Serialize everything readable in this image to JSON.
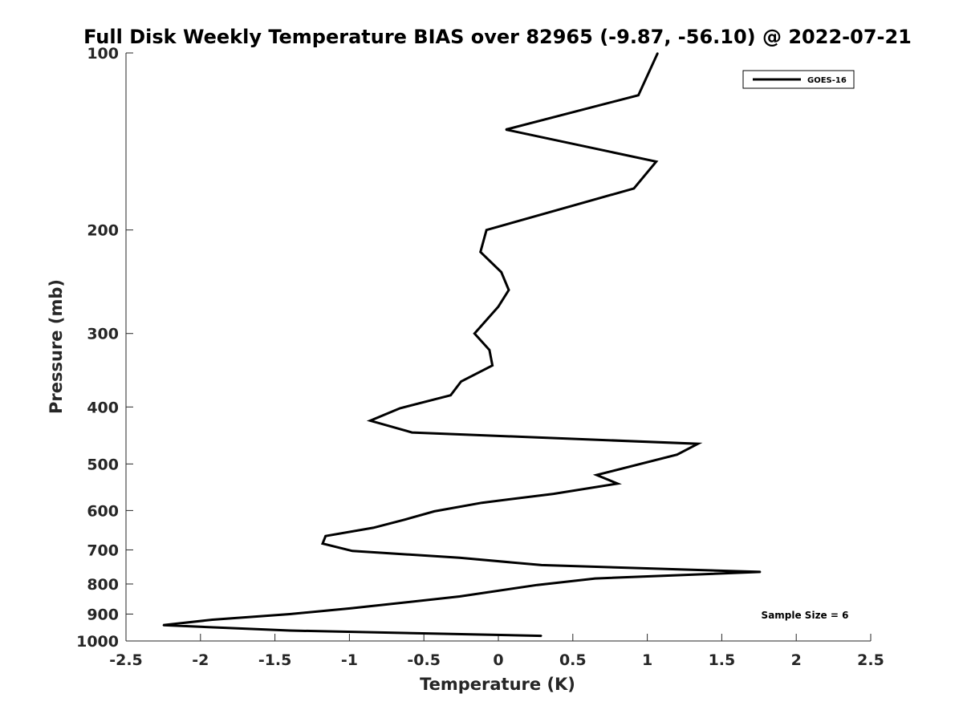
{
  "chart_data": {
    "type": "line",
    "title": "Full Disk Weekly Temperature BIAS over 82965 (-9.87, -56.10) @ 2022-07-21",
    "xlabel": "Temperature (K)",
    "ylabel": "Pressure (mb)",
    "xlim": [
      -2.5,
      2.5
    ],
    "ylim": [
      100,
      1000
    ],
    "y_scale": "log",
    "y_reversed": true,
    "xticks": [
      -2.5,
      -2,
      -1.5,
      -1,
      -0.5,
      0,
      0.5,
      1,
      1.5,
      2,
      2.5
    ],
    "xtick_labels": [
      "-2.5",
      "-2",
      "-1.5",
      "-1",
      "-0.5",
      "0",
      "0.5",
      "1",
      "1.5",
      "2",
      "2.5"
    ],
    "yticks": [
      100,
      200,
      300,
      400,
      500,
      600,
      700,
      800,
      900,
      1000
    ],
    "ytick_labels": [
      "100",
      "200",
      "300",
      "400",
      "500",
      "600",
      "700",
      "800",
      "900",
      "1000"
    ],
    "grid": false,
    "legend_position": "top-right",
    "series": [
      {
        "name": "GOES-16",
        "color": "#000000",
        "points": [
          {
            "x": 1.07,
            "y": 100
          },
          {
            "x": 0.94,
            "y": 118
          },
          {
            "x": 0.05,
            "y": 135
          },
          {
            "x": 1.06,
            "y": 153
          },
          {
            "x": 0.91,
            "y": 170
          },
          {
            "x": -0.08,
            "y": 200
          },
          {
            "x": -0.12,
            "y": 218
          },
          {
            "x": 0.02,
            "y": 236
          },
          {
            "x": 0.07,
            "y": 253
          },
          {
            "x": 0.0,
            "y": 270
          },
          {
            "x": -0.16,
            "y": 300
          },
          {
            "x": -0.06,
            "y": 320
          },
          {
            "x": -0.04,
            "y": 340
          },
          {
            "x": -0.25,
            "y": 362
          },
          {
            "x": -0.32,
            "y": 382
          },
          {
            "x": -0.66,
            "y": 402
          },
          {
            "x": -0.86,
            "y": 422
          },
          {
            "x": -0.58,
            "y": 442
          },
          {
            "x": 1.34,
            "y": 462
          },
          {
            "x": 1.2,
            "y": 482
          },
          {
            "x": 0.66,
            "y": 522
          },
          {
            "x": 0.8,
            "y": 540
          },
          {
            "x": 0.37,
            "y": 562
          },
          {
            "x": -0.11,
            "y": 582
          },
          {
            "x": -0.43,
            "y": 602
          },
          {
            "x": -0.63,
            "y": 622
          },
          {
            "x": -0.84,
            "y": 642
          },
          {
            "x": -1.16,
            "y": 663
          },
          {
            "x": -1.18,
            "y": 683
          },
          {
            "x": -0.98,
            "y": 703
          },
          {
            "x": -0.26,
            "y": 722
          },
          {
            "x": 0.29,
            "y": 743
          },
          {
            "x": 1.76,
            "y": 763
          },
          {
            "x": 0.65,
            "y": 783
          },
          {
            "x": 0.26,
            "y": 803
          },
          {
            "x": -0.26,
            "y": 840
          },
          {
            "x": -0.99,
            "y": 880
          },
          {
            "x": -1.4,
            "y": 900
          },
          {
            "x": -1.92,
            "y": 920
          },
          {
            "x": -2.25,
            "y": 940
          },
          {
            "x": -1.4,
            "y": 960
          },
          {
            "x": 0.29,
            "y": 980
          }
        ]
      }
    ],
    "annotation": "Sample Size = 6"
  }
}
